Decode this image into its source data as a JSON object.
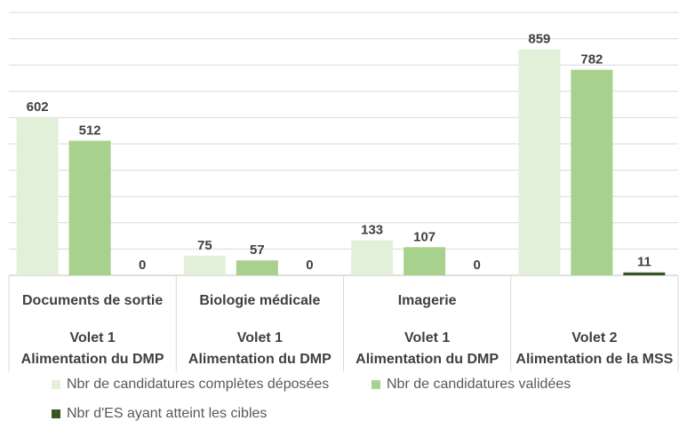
{
  "chart_data": {
    "type": "bar",
    "categories": [
      {
        "line1": "Documents de sortie",
        "line2": "Volet 1",
        "line3": "Alimentation du DMP"
      },
      {
        "line1": "Biologie médicale",
        "line2": "Volet 1",
        "line3": "Alimentation du DMP"
      },
      {
        "line1": "Imagerie",
        "line2": "Volet 1",
        "line3": "Alimentation du DMP"
      },
      {
        "line1": "",
        "line2": "Volet 2",
        "line3": "Alimentation de la MSS"
      }
    ],
    "series": [
      {
        "name": "Nbr de candidatures complètes déposées",
        "color": "#e2f0d9",
        "values": [
          602,
          75,
          133,
          859
        ]
      },
      {
        "name": "Nbr de candidatures validées",
        "color": "#a9d18e",
        "values": [
          512,
          57,
          107,
          782
        ]
      },
      {
        "name": "Nbr d'ES ayant atteint les cibles",
        "color": "#375623",
        "values": [
          0,
          0,
          0,
          11
        ]
      }
    ],
    "ylim": [
      0,
      1000
    ],
    "grid": true,
    "data_labels": true,
    "legend_position": "bottom"
  }
}
